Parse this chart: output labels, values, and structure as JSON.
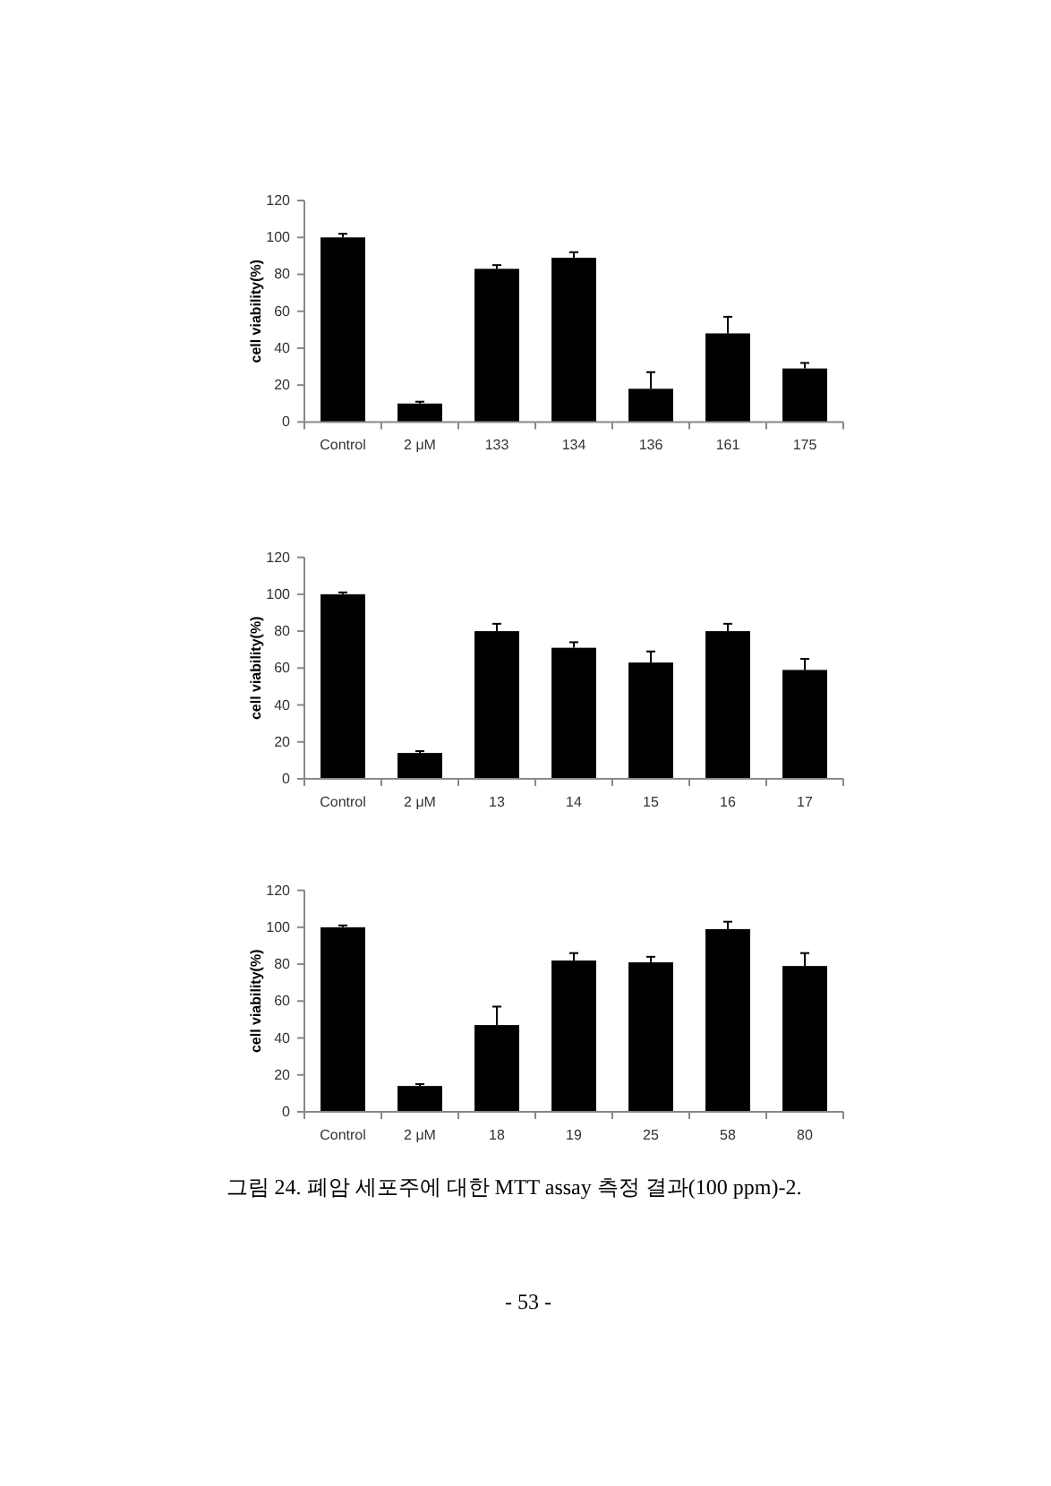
{
  "chart_data": [
    {
      "type": "bar",
      "ylabel": "cell viability(%)",
      "categories": [
        "Control",
        "2 μM",
        "133",
        "134",
        "136",
        "161",
        "175"
      ],
      "values": [
        100,
        10,
        83,
        89,
        18,
        48,
        29
      ],
      "errors": [
        [
          100,
          102
        ],
        [
          10,
          11
        ],
        [
          83,
          85
        ],
        [
          89,
          92
        ],
        [
          18,
          27
        ],
        [
          48,
          57
        ],
        [
          29,
          32
        ]
      ],
      "color": "#000000",
      "ylim": [
        0,
        120
      ],
      "yticks": [
        0,
        20,
        40,
        60,
        80,
        100,
        120
      ],
      "grid": false
    },
    {
      "type": "bar",
      "ylabel": "cell viability(%)",
      "categories": [
        "Control",
        "2 μM",
        "13",
        "14",
        "15",
        "16",
        "17"
      ],
      "values": [
        100,
        14,
        80,
        71,
        63,
        80,
        59
      ],
      "errors": [
        [
          100,
          101
        ],
        [
          14,
          15
        ],
        [
          80,
          84
        ],
        [
          71,
          74
        ],
        [
          63,
          69
        ],
        [
          80,
          84
        ],
        [
          59,
          65
        ]
      ],
      "color": "#000000",
      "ylim": [
        0,
        120
      ],
      "yticks": [
        0,
        20,
        40,
        60,
        80,
        100,
        120
      ],
      "grid": false
    },
    {
      "type": "bar",
      "ylabel": "cell viability(%)",
      "categories": [
        "Control",
        "2 μM",
        "18",
        "19",
        "25",
        "58",
        "80"
      ],
      "values": [
        100,
        14,
        47,
        82,
        81,
        99,
        79
      ],
      "errors": [
        [
          100,
          101
        ],
        [
          14,
          15
        ],
        [
          47,
          57
        ],
        [
          82,
          86
        ],
        [
          81,
          84
        ],
        [
          99,
          103
        ],
        [
          79,
          86
        ]
      ],
      "color": "#000000",
      "ylim": [
        0,
        120
      ],
      "yticks": [
        0,
        20,
        40,
        60,
        80,
        100,
        120
      ],
      "grid": false,
      "annotations": [
        "그림 24. 폐암 세포주에 대한 MTT assay 측정 결과(100 ppm)-2.",
        "- 53 -"
      ]
    }
  ]
}
